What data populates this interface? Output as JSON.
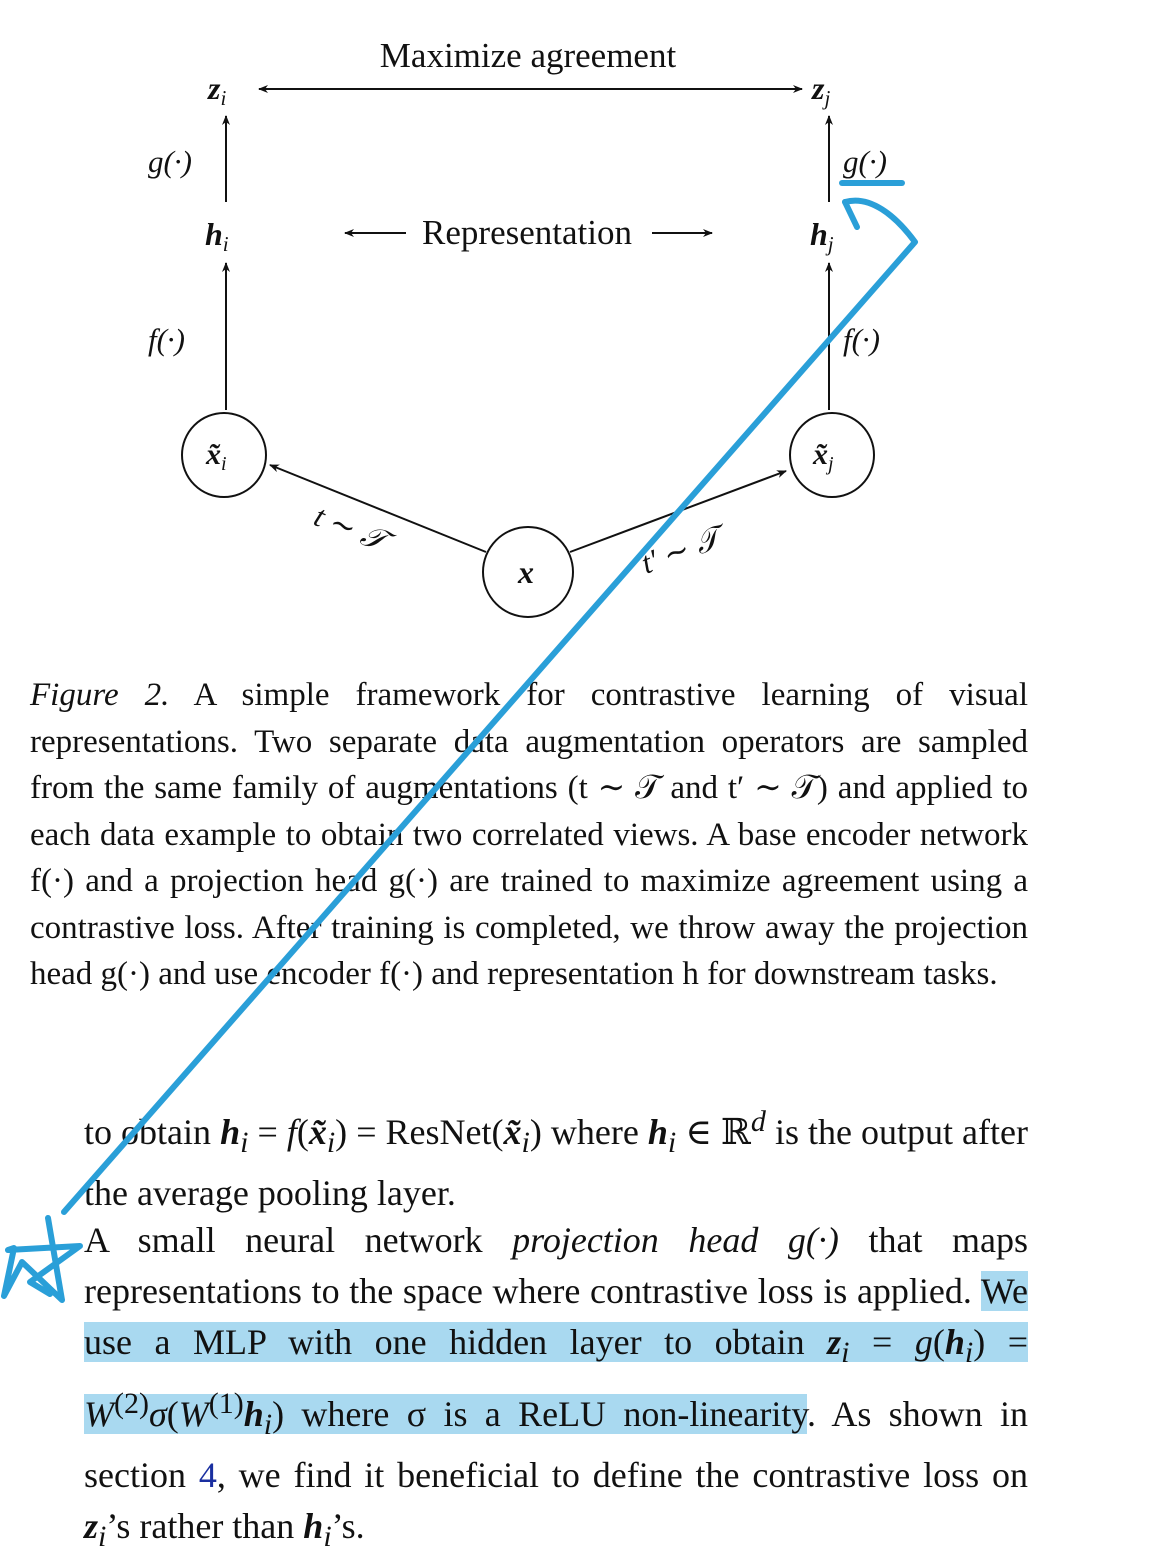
{
  "figure": {
    "top_label": "Maximize agreement",
    "mid_label": "Representation",
    "left_column": {
      "z": "z",
      "z_sub": "i",
      "g": "g(·)",
      "h": "h",
      "h_sub": "i",
      "f": "f(·)",
      "x": "x̃",
      "x_sub": "i"
    },
    "right_column": {
      "z": "z",
      "z_sub": "j",
      "g": "g(·)",
      "h": "h",
      "h_sub": "j",
      "f": "f(·)",
      "x": "x̃",
      "x_sub": "j"
    },
    "input_node": "x",
    "left_edge_label": "t ∼ 𝒯",
    "right_edge_label": "t′ ∼ 𝒯"
  },
  "caption": {
    "label": "Figure 2.",
    "text": "A simple framework for contrastive learning of visual representations. Two separate data augmentation operators are sampled from the same family of augmentations (t ∼ 𝒯 and t′ ∼ 𝒯) and applied to each data example to obtain two correlated views. A base encoder network f(·) and a projection head g(·) are trained to maximize agreement using a contrastive loss. After training is completed, we throw away the projection head g(·) and use encoder f(·) and representation h for downstream tasks."
  },
  "body": {
    "para1": {
      "t1": "to obtain ",
      "h": "h",
      "sub_i": "i",
      "eq": " = ",
      "f": "f",
      "open": "(",
      "x": "x̃",
      "close": ")",
      "eq2": " = ",
      "resnet": "ResNet",
      "t2": " where ",
      "in": " ∈ ",
      "R": "ℝ",
      "d": "d",
      "t3": " is the output after the average pooling layer."
    },
    "para2": {
      "t1": "A small neural network ",
      "ph": "projection head",
      "g": " g(·)",
      "t2": " that maps representations to the space where contrastive loss is applied. ",
      "hl1": "We use a MLP with one hidden layer to obtain ",
      "z": "z",
      "sub_i": "i",
      "eq": " = ",
      "g2": "g",
      "h": "h",
      "eq2": " = ",
      "W": "W",
      "sup2": "(2)",
      "sigma": "σ",
      "sup1": "(1)",
      "hl2": " where σ is a ReLU non-linearity",
      "t3": ". As shown in section ",
      "ref": "4",
      "t4": ", we find it beneficial to define the contrastive loss on ",
      "t5": "’s rather than ",
      "t6": "’s."
    }
  },
  "colors": {
    "highlight": "#a9d9f0",
    "pen_stroke": "#2a9fd8",
    "link": "#1a2fa0"
  }
}
